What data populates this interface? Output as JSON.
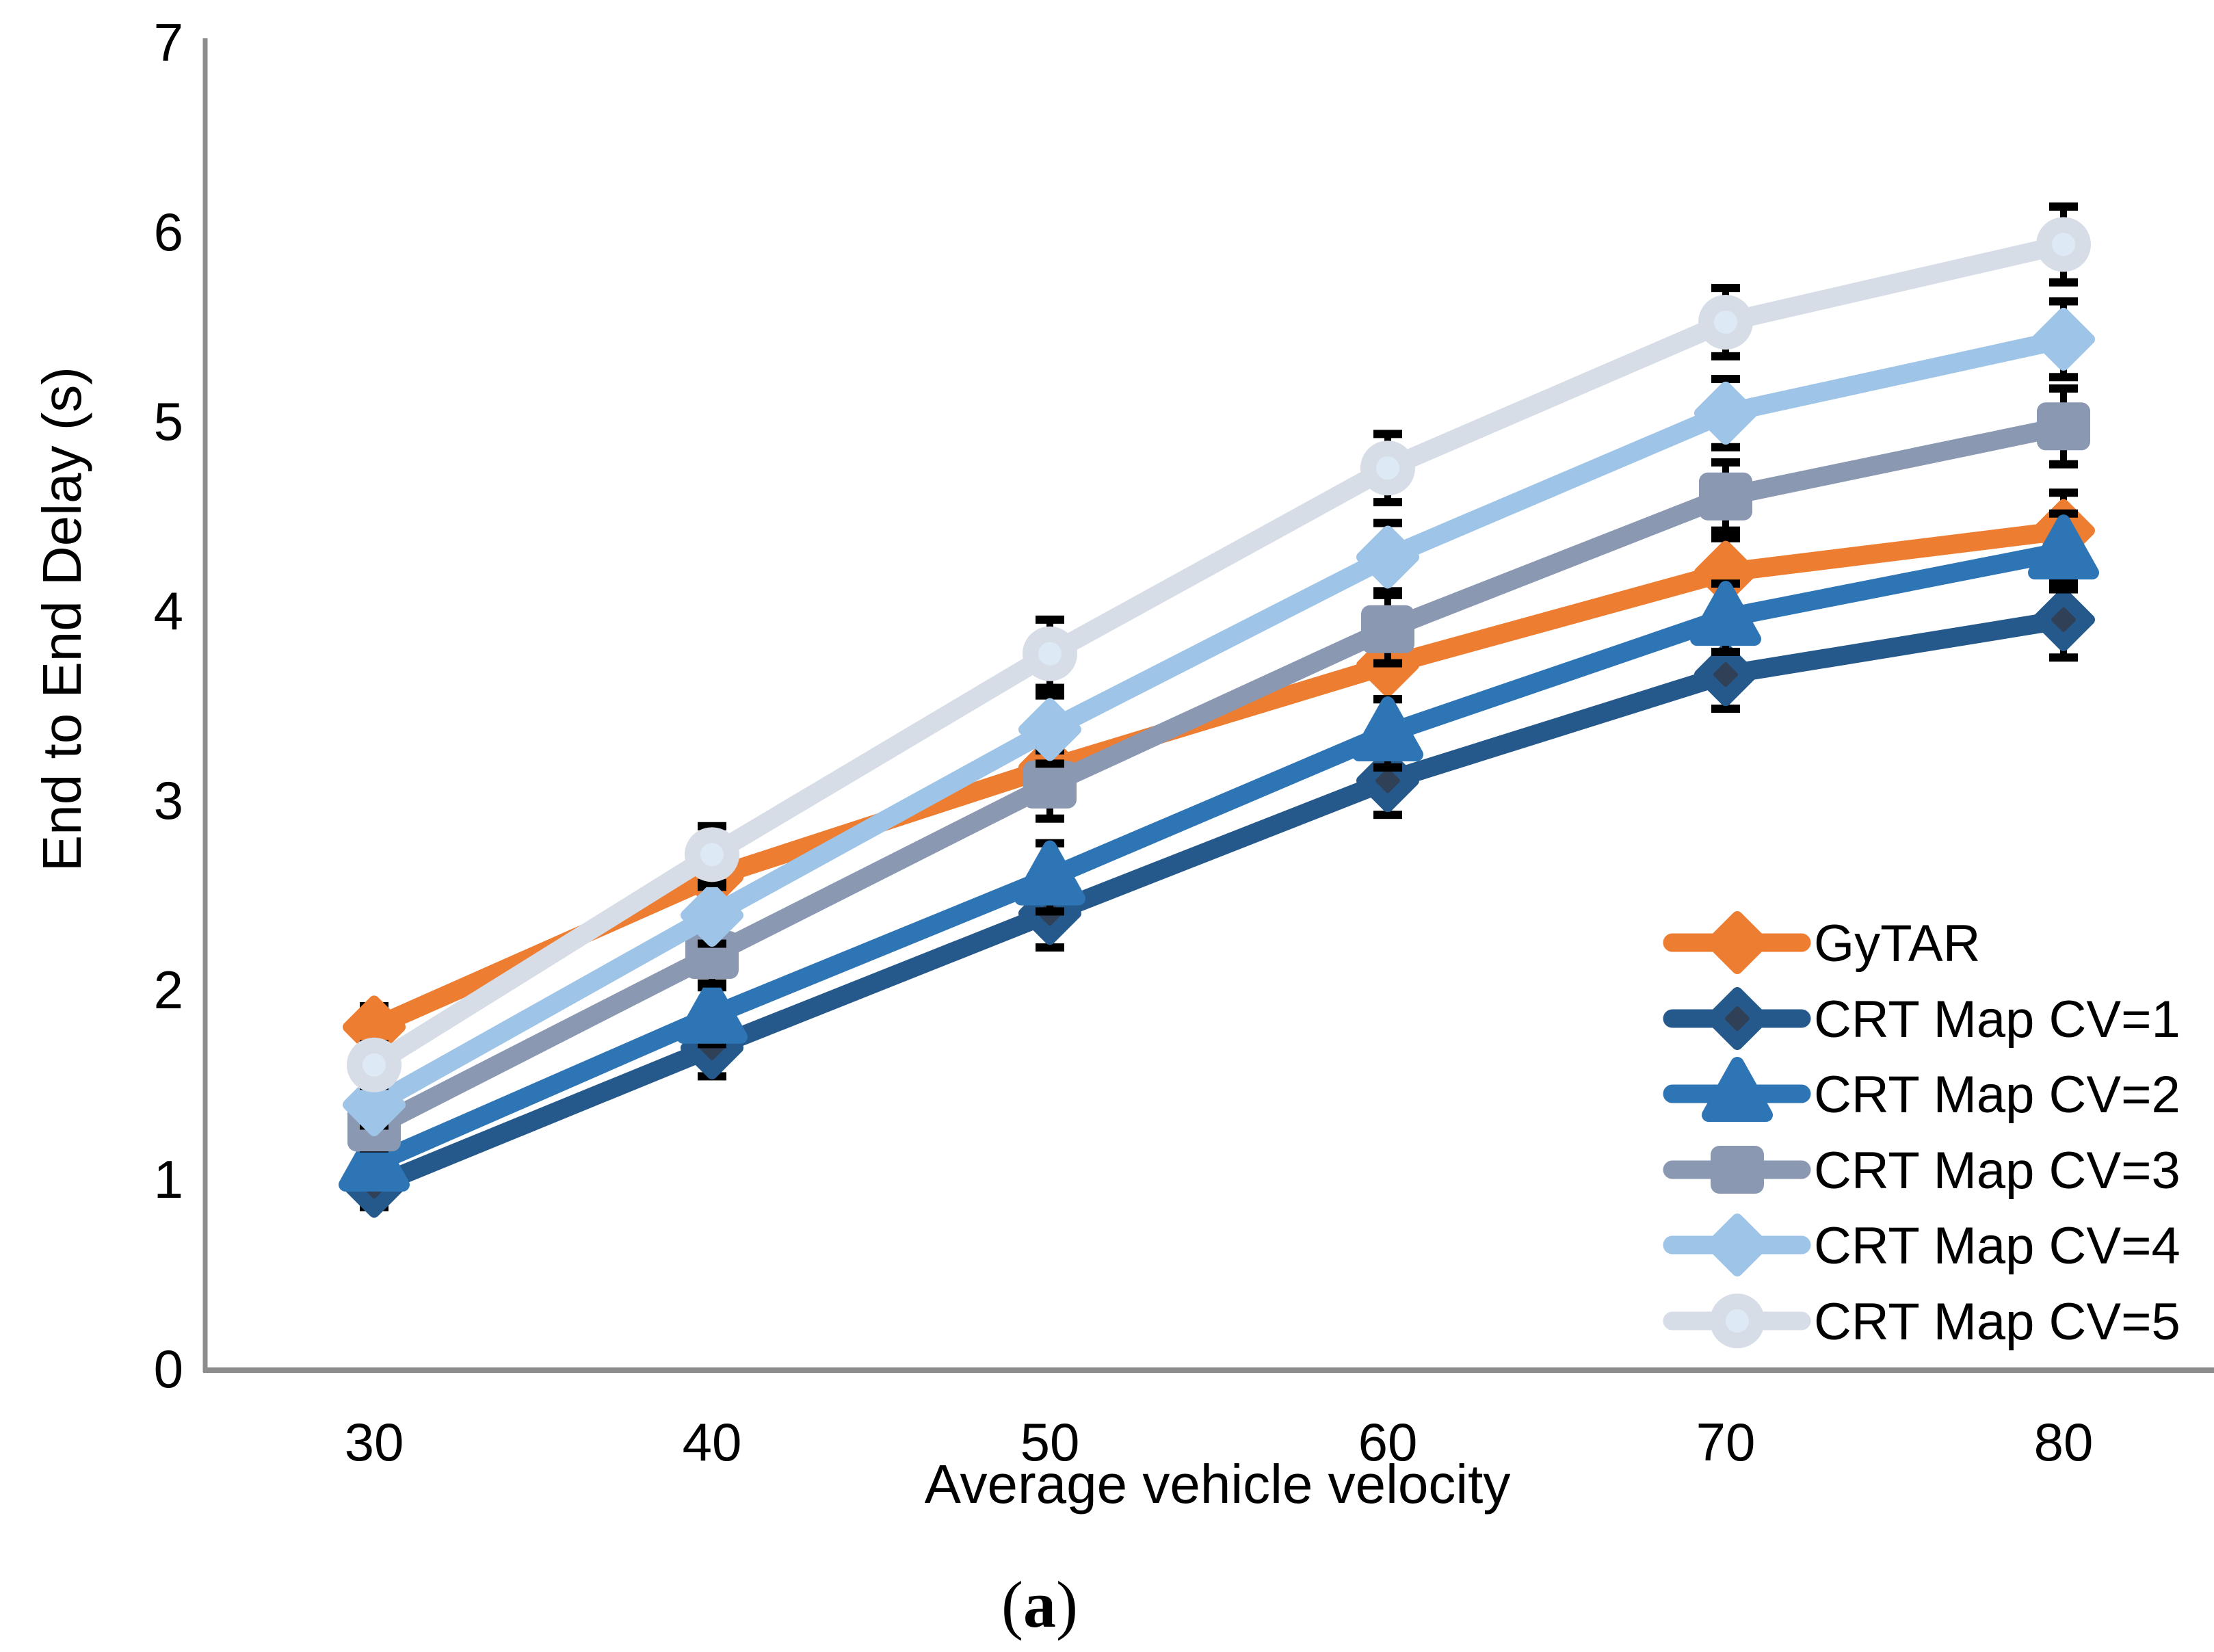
{
  "chart_data": {
    "type": "line",
    "title": "",
    "xlabel": "Average vehicle velocity",
    "ylabel": "End to End Delay (s)",
    "categories": [
      30,
      40,
      50,
      60,
      70,
      80
    ],
    "ylim": [
      0,
      7
    ],
    "yticks": [
      0,
      1,
      2,
      3,
      4,
      5,
      6,
      7
    ],
    "grid": false,
    "legend_position": "inside-right",
    "error_bars": [
      0.11,
      0.15,
      0.18,
      0.18,
      0.18,
      0.2
    ],
    "series": [
      {
        "name": "GyTAR",
        "legend_label": " GyTAR",
        "marker": "diamond",
        "color": "#ED7D31",
        "values": [
          1.8,
          2.59,
          3.17,
          3.71,
          4.2,
          4.42
        ]
      },
      {
        "name": "CRT Map CV=1",
        "marker": "diamond-dot",
        "color": "#26598B",
        "inner_color": "#2F4057",
        "values": [
          0.96,
          1.69,
          2.4,
          3.1,
          3.66,
          3.95
        ]
      },
      {
        "name": "CRT Map CV=2",
        "marker": "triangle",
        "color": "#2E75B6",
        "values": [
          1.08,
          1.86,
          2.59,
          3.35,
          3.96,
          4.31
        ]
      },
      {
        "name": "CRT Map CV=3",
        "marker": "square",
        "color": "#8A98B2",
        "values": [
          1.27,
          2.18,
          3.08,
          3.9,
          4.6,
          4.97
        ]
      },
      {
        "name": "CRT Map CV=4",
        "marker": "diamond",
        "color": "#9EC4E7",
        "values": [
          1.39,
          2.39,
          3.37,
          4.28,
          5.04,
          5.43
        ]
      },
      {
        "name": "CRT Map CV=5",
        "marker": "circle-dot",
        "color": "#D6DDE7",
        "inner_color": "#DEE9F6",
        "values": [
          1.6,
          2.71,
          3.77,
          4.75,
          5.52,
          5.93
        ]
      }
    ],
    "colors": {
      "error": "#000000",
      "axis": "#8C8C8C",
      "text": "#000000"
    }
  },
  "caption": {
    "open": "(",
    "letter": "a",
    "close": ")"
  }
}
